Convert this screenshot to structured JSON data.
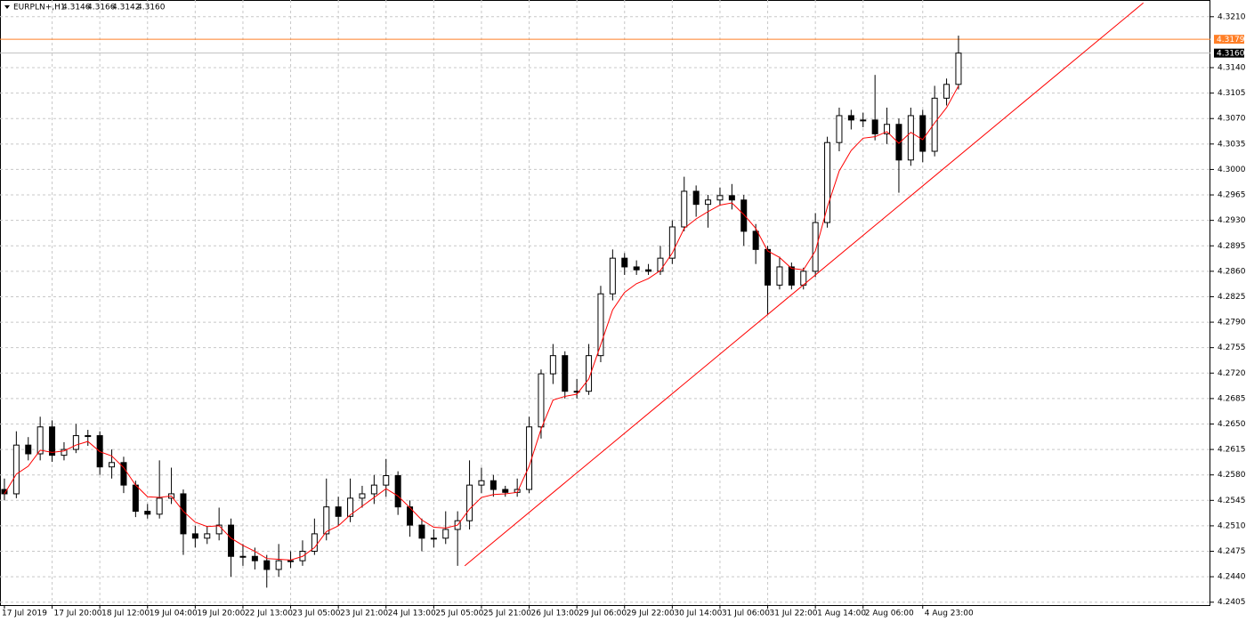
{
  "header": {
    "symbol": "EURPLN+,H1",
    "quote": [
      "4.3146",
      "4.3166",
      "4.3142",
      "4.3160"
    ]
  },
  "chart_data": {
    "type": "candlestick",
    "categories": [
      "17 Jul 2019",
      null,
      null,
      null,
      "17 Jul 20:00",
      null,
      null,
      null,
      "18 Jul 12:00",
      null,
      null,
      null,
      "19 Jul 04:00",
      null,
      null,
      null,
      "19 Jul 20:00",
      null,
      null,
      null,
      "22 Jul 13:00",
      null,
      null,
      null,
      "23 Jul 05:00",
      null,
      null,
      null,
      "23 Jul 21:00",
      null,
      null,
      null,
      "24 Jul 13:00",
      null,
      null,
      null,
      "25 Jul 05:00",
      null,
      null,
      null,
      "25 Jul 21:00",
      null,
      null,
      null,
      "26 Jul 13:00",
      null,
      null,
      null,
      "29 Jul 06:00",
      null,
      null,
      null,
      "29 Jul 22:00",
      null,
      null,
      null,
      "30 Jul 14:00",
      null,
      null,
      null,
      "31 Jul 06:00",
      null,
      null,
      null,
      "31 Jul 22:00",
      null,
      null,
      null,
      "1 Aug 14:00",
      null,
      null,
      null,
      "2 Aug 06:00",
      null,
      null,
      null,
      null,
      "4 Aug 23:00",
      null,
      null,
      null
    ],
    "candles": [
      [
        4.256,
        4.2575,
        4.2545,
        4.2554
      ],
      [
        4.2554,
        4.264,
        4.2548,
        4.2621
      ],
      [
        4.2621,
        4.2632,
        4.26,
        4.2609
      ],
      [
        4.2609,
        4.266,
        4.26,
        4.2646
      ],
      [
        4.2646,
        4.2655,
        4.2598,
        4.2607
      ],
      [
        4.2607,
        4.2625,
        4.26,
        4.2615
      ],
      [
        4.2615,
        4.265,
        4.261,
        4.2634
      ],
      [
        4.2634,
        4.2642,
        4.262,
        4.2634
      ],
      [
        4.2634,
        4.264,
        4.258,
        4.2591
      ],
      [
        4.2591,
        4.2615,
        4.2575,
        4.2597
      ],
      [
        4.2597,
        4.2605,
        4.2555,
        4.2566
      ],
      [
        4.2566,
        4.2572,
        4.2522,
        4.253
      ],
      [
        4.253,
        4.254,
        4.252,
        4.2526
      ],
      [
        4.2526,
        4.26,
        4.252,
        4.2548
      ],
      [
        4.2548,
        4.259,
        4.254,
        4.2554
      ],
      [
        4.2554,
        4.256,
        4.247,
        4.2499
      ],
      [
        4.2499,
        4.251,
        4.248,
        4.2493
      ],
      [
        4.2493,
        4.251,
        4.2485,
        4.2499
      ],
      [
        4.2499,
        4.2535,
        4.249,
        4.2511
      ],
      [
        4.2511,
        4.252,
        4.244,
        4.2468
      ],
      [
        4.2468,
        4.2485,
        4.2455,
        4.2468
      ],
      [
        4.2468,
        4.248,
        4.245,
        4.2462
      ],
      [
        4.2462,
        4.247,
        4.2425,
        4.245
      ],
      [
        4.245,
        4.2485,
        4.244,
        4.2462
      ],
      [
        4.2462,
        4.2475,
        4.2452,
        4.2462
      ],
      [
        4.2462,
        4.249,
        4.2455,
        4.2475
      ],
      [
        4.2475,
        4.252,
        4.247,
        4.2499
      ],
      [
        4.2499,
        4.2575,
        4.249,
        4.2536
      ],
      [
        4.2536,
        4.255,
        4.251,
        4.2523
      ],
      [
        4.2523,
        4.2575,
        4.2515,
        4.2548
      ],
      [
        4.2548,
        4.2565,
        4.2535,
        4.2554
      ],
      [
        4.2554,
        4.258,
        4.254,
        4.2566
      ],
      [
        4.2566,
        4.2602,
        4.255,
        4.2579
      ],
      [
        4.2579,
        4.2585,
        4.2525,
        4.2536
      ],
      [
        4.2536,
        4.2545,
        4.2495,
        4.2511
      ],
      [
        4.2511,
        4.252,
        4.2475,
        4.2493
      ],
      [
        4.2493,
        4.2505,
        4.248,
        4.2493
      ],
      [
        4.2493,
        4.253,
        4.2485,
        4.2505
      ],
      [
        4.2505,
        4.253,
        4.2455,
        4.2517
      ],
      [
        4.2517,
        4.26,
        4.2505,
        4.2566
      ],
      [
        4.2566,
        4.259,
        4.2555,
        4.2572
      ],
      [
        4.2572,
        4.258,
        4.255,
        4.256
      ],
      [
        4.256,
        4.2565,
        4.255,
        4.2556
      ],
      [
        4.2556,
        4.2575,
        4.255,
        4.256
      ],
      [
        4.256,
        4.266,
        4.2555,
        4.2646
      ],
      [
        4.2646,
        4.2725,
        4.263,
        4.2719
      ],
      [
        4.2719,
        4.276,
        4.2705,
        4.2744
      ],
      [
        4.2744,
        4.275,
        4.2685,
        4.2695
      ],
      [
        4.2695,
        4.2712,
        4.2685,
        4.2695
      ],
      [
        4.2695,
        4.276,
        4.269,
        4.2744
      ],
      [
        4.2744,
        4.284,
        4.2735,
        4.2829
      ],
      [
        4.2829,
        4.289,
        4.282,
        4.2878
      ],
      [
        4.2878,
        4.2885,
        4.2855,
        4.2866
      ],
      [
        4.2866,
        4.2875,
        4.2855,
        4.2862
      ],
      [
        4.2862,
        4.287,
        4.2855,
        4.286
      ],
      [
        4.286,
        4.2895,
        4.2855,
        4.2878
      ],
      [
        4.2878,
        4.293,
        4.287,
        4.2921
      ],
      [
        4.2921,
        4.299,
        4.2915,
        4.297
      ],
      [
        4.297,
        4.2978,
        4.2935,
        4.2952
      ],
      [
        4.2952,
        4.2965,
        4.292,
        4.2958
      ],
      [
        4.2958,
        4.2975,
        4.295,
        4.2964
      ],
      [
        4.2964,
        4.298,
        4.2945,
        4.2958
      ],
      [
        4.2958,
        4.2965,
        4.2895,
        4.2915
      ],
      [
        4.2915,
        4.2925,
        4.287,
        4.289
      ],
      [
        4.289,
        4.2895,
        4.28,
        4.2841
      ],
      [
        4.2841,
        4.288,
        4.2835,
        4.2866
      ],
      [
        4.2866,
        4.2872,
        4.2835,
        4.2841
      ],
      [
        4.2841,
        4.2865,
        4.2835,
        4.286
      ],
      [
        4.286,
        4.294,
        4.2852,
        4.2927
      ],
      [
        4.2927,
        4.3045,
        4.292,
        4.3037
      ],
      [
        4.3037,
        4.3085,
        4.3025,
        4.3074
      ],
      [
        4.3074,
        4.3082,
        4.3055,
        4.3068
      ],
      [
        4.3068,
        4.3078,
        4.3058,
        4.3068
      ],
      [
        4.3068,
        4.313,
        4.304,
        4.3049
      ],
      [
        4.3049,
        4.3085,
        4.3035,
        4.3062
      ],
      [
        4.3062,
        4.307,
        4.2968,
        4.3013
      ],
      [
        4.3013,
        4.3085,
        4.3005,
        4.3074
      ],
      [
        4.3074,
        4.3082,
        4.301,
        4.3025
      ],
      [
        4.3025,
        4.3115,
        4.3018,
        4.3098
      ],
      [
        4.3098,
        4.3125,
        4.3088,
        4.3117
      ],
      [
        4.3117,
        4.3184,
        4.311,
        4.316
      ]
    ],
    "ma": {
      "color": "#ff0000",
      "values": [
        4.2554,
        4.2581,
        4.2592,
        4.2614,
        4.2611,
        4.2613,
        4.2621,
        4.2626,
        4.2612,
        4.2606,
        4.259,
        4.2566,
        4.255,
        4.2549,
        4.2551,
        4.253,
        4.2515,
        4.2509,
        4.251,
        4.2493,
        4.2483,
        4.2475,
        4.2465,
        4.2464,
        4.2463,
        4.2468,
        4.248,
        4.2502,
        4.251,
        4.2525,
        4.2537,
        4.2549,
        4.2561,
        4.2551,
        4.2535,
        4.2518,
        4.2508,
        4.2507,
        4.2511,
        4.2533,
        4.2549,
        4.2553,
        4.2554,
        4.2556,
        4.2592,
        4.2643,
        4.2683,
        4.2688,
        4.2691,
        4.2712,
        4.2759,
        4.2807,
        4.2831,
        4.2843,
        4.285,
        4.2861,
        4.2885,
        4.2919,
        4.2932,
        4.2942,
        4.2951,
        4.2954,
        4.2938,
        4.2919,
        4.2888,
        4.2879,
        4.2864,
        4.2862,
        4.2888,
        4.2948,
        4.2998,
        4.3026,
        4.3043,
        4.3045,
        4.3052,
        4.3036,
        4.3051,
        4.3041,
        4.3064,
        4.3085,
        4.3115
      ]
    },
    "trendline": {
      "color": "#ff0000",
      "x": [
        38.6,
        95.5
      ],
      "y": [
        4.2455,
        4.3229
      ]
    },
    "price_lines": [
      {
        "value": 4.3179,
        "label": "4.3179",
        "color": "#ff7f27"
      },
      {
        "value": 4.316,
        "label": "4.3160",
        "color": "#c0c0c0"
      }
    ],
    "ylim": [
      4.2401,
      4.3233
    ],
    "yticks": [
      4.2405,
      {
        "value": 4.244,
        "label": "4.2440"
      },
      4.2475,
      {
        "value": 4.251,
        "label": "4.2510"
      },
      4.2545,
      {
        "value": 4.258,
        "label": "4.2580"
      },
      4.2615,
      {
        "value": 4.265,
        "label": "4.2650"
      },
      4.2685,
      {
        "value": 4.272,
        "label": "4.2720"
      },
      4.2755,
      {
        "value": 4.279,
        "label": "4.2790"
      },
      4.2825,
      {
        "value": 4.286,
        "label": "4.2860"
      },
      4.2895,
      {
        "value": 4.293,
        "label": "4.2930"
      },
      4.2965,
      {
        "value": 4.3,
        "label": "4.3000"
      },
      4.3035,
      {
        "value": 4.307,
        "label": "4.3070"
      },
      4.3105,
      {
        "value": 4.314,
        "label": "4.3140"
      },
      {
        "value": 4.321,
        "label": "4.3210"
      }
    ],
    "grid": true,
    "bull_color": "#ffffff",
    "bear_color": "#000000"
  }
}
